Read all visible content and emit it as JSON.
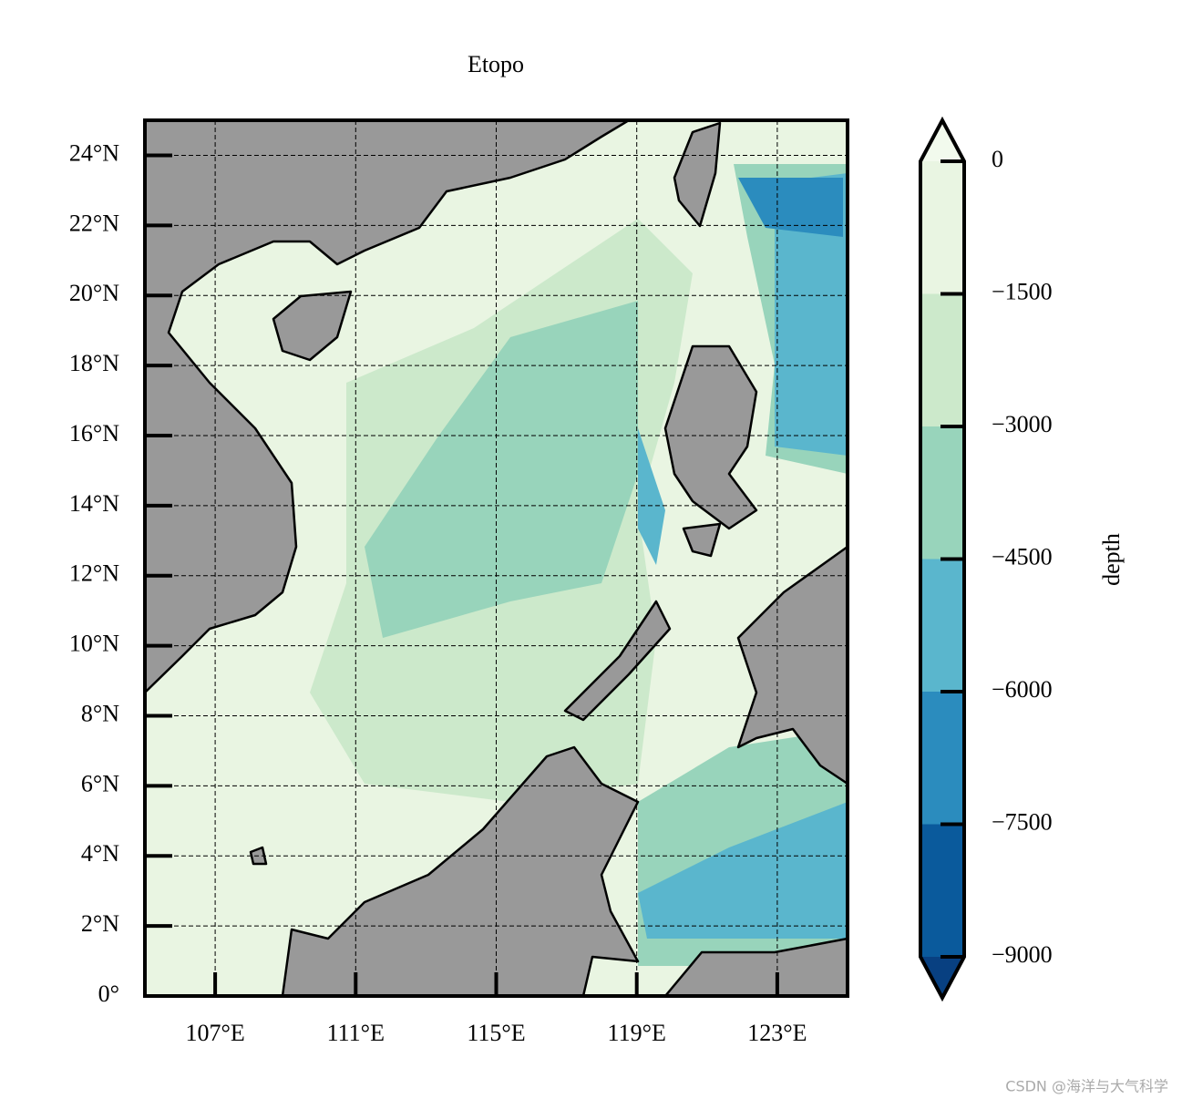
{
  "map": {
    "title": "Etopo",
    "xlim": [
      105,
      125
    ],
    "ylim": [
      0,
      25
    ],
    "xticks": [
      {
        "value": 107,
        "label": "107°E"
      },
      {
        "value": 111,
        "label": "111°E"
      },
      {
        "value": 115,
        "label": "115°E"
      },
      {
        "value": 119,
        "label": "119°E"
      },
      {
        "value": 123,
        "label": "123°E"
      }
    ],
    "yticks": [
      {
        "value": 0,
        "label": "0°"
      },
      {
        "value": 2,
        "label": "2°N"
      },
      {
        "value": 4,
        "label": "4°N"
      },
      {
        "value": 6,
        "label": "6°N"
      },
      {
        "value": 8,
        "label": "8°N"
      },
      {
        "value": 10,
        "label": "10°N"
      },
      {
        "value": 12,
        "label": "12°N"
      },
      {
        "value": 14,
        "label": "14°N"
      },
      {
        "value": 16,
        "label": "16°N"
      },
      {
        "value": 18,
        "label": "18°N"
      },
      {
        "value": 20,
        "label": "20°N"
      },
      {
        "value": 22,
        "label": "22°N"
      },
      {
        "value": 24,
        "label": "24°N"
      }
    ],
    "grid": true,
    "colorbar": {
      "label": "depth",
      "lim": [
        -9000,
        0
      ],
      "ticks": [
        {
          "value": -9000,
          "label": "−9000"
        },
        {
          "value": -7500,
          "label": "−7500"
        },
        {
          "value": -6000,
          "label": "−6000"
        },
        {
          "value": -4500,
          "label": "−4500"
        },
        {
          "value": -3000,
          "label": "−3000"
        },
        {
          "value": -1500,
          "label": "−1500"
        },
        0
      ],
      "colors": [
        "#0a5a9c",
        "#2b8cbe",
        "#5ab6cd",
        "#98d4bb",
        "#cce9cb",
        "#e9f5e2"
      ],
      "extend_colors": [
        "#084081",
        "#f2faed"
      ]
    },
    "watermark": "CSDN @海洋与大气科学"
  }
}
